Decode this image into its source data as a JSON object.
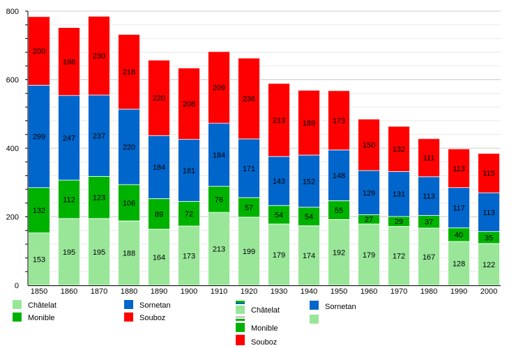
{
  "chart_data": {
    "type": "bar",
    "stacked": true,
    "categories": [
      "1850",
      "1860",
      "1870",
      "1880",
      "1890",
      "1900",
      "1910",
      "1920",
      "1930",
      "1940",
      "1950",
      "1960",
      "1970",
      "1980",
      "1990",
      "2000"
    ],
    "series": [
      {
        "name": "Châtelat",
        "color": "#99e699",
        "values": [
          153,
          195,
          195,
          188,
          164,
          173,
          213,
          199,
          179,
          174,
          192,
          179,
          172,
          167,
          128,
          122
        ]
      },
      {
        "name": "Monible",
        "color": "#00b200",
        "values": [
          132,
          112,
          123,
          106,
          89,
          72,
          76,
          57,
          54,
          54,
          55,
          27,
          29,
          37,
          40,
          35
        ]
      },
      {
        "name": "Sornetan",
        "color": "#0066cc",
        "values": [
          299,
          247,
          237,
          220,
          184,
          181,
          184,
          171,
          143,
          152,
          148,
          129,
          131,
          113,
          117,
          113
        ]
      },
      {
        "name": "Souboz",
        "color": "#ff0000",
        "values": [
          200,
          198,
          230,
          218,
          220,
          208,
          209,
          236,
          213,
          189,
          173,
          150,
          132,
          111,
          113,
          115
        ]
      }
    ],
    "ylim": [
      0,
      800
    ],
    "yticks": [
      "0",
      "200",
      "400",
      "600",
      "800"
    ],
    "grid": true,
    "legend_placement": "bottom",
    "legend": {
      "first": [
        "Châtelat",
        "Monible",
        "Sornetan",
        "Souboz"
      ],
      "second": [
        "Châtelat",
        "Monible",
        "Souboz",
        "Sornetan"
      ]
    }
  }
}
